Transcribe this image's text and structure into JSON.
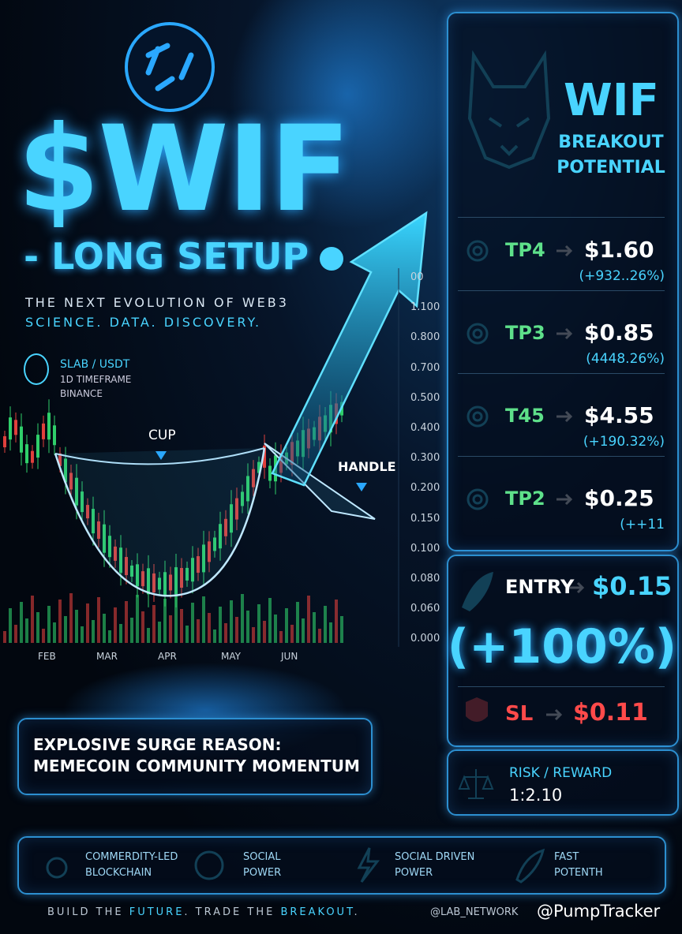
{
  "header": {
    "title": "$WIF",
    "subtitle": "- LONG SETUP",
    "tagline": "THE NEXT EVOLUTION OF WEB3",
    "tagline2": "SCIENCE. DATA. DISCOVERY."
  },
  "pair": {
    "symbol": "SLAB / USDT",
    "timeframe": "1D TIMEFRAME",
    "exchange": "BINANCE"
  },
  "chart": {
    "cup_label": "CUP",
    "handle_label": "HANDLE",
    "y_labels": [
      "00",
      "1.100",
      "0.800",
      "0.700",
      "0.500",
      "0.400",
      "0.300",
      "0.200",
      "0.150",
      "0.100",
      "0.080",
      "0.060",
      "0.000"
    ],
    "x_labels": [
      "FEB",
      "MAR",
      "APR",
      "MAY",
      "JUN"
    ]
  },
  "panel": {
    "title": "WIF",
    "subtitle": "BREAKOUT",
    "subtitle2": "POTENTIAL",
    "targets": [
      {
        "label": "TP4",
        "price": "$1.60",
        "change": "(+932..26%)"
      },
      {
        "label": "TP3",
        "price": "$0.85",
        "change": "(4448.26%)"
      },
      {
        "label": "T45",
        "price": "$4.55",
        "change": "(+190.32%)"
      },
      {
        "label": "TP2",
        "price": "$0.25",
        "change": "(++11"
      }
    ]
  },
  "entry": {
    "label": "ENTRY",
    "price": "$0.15",
    "change": "(+100%)"
  },
  "stop": {
    "label": "SL",
    "price": "$0.11"
  },
  "risk": {
    "label": "RISK / REWARD",
    "value": "1:2.10"
  },
  "reason": {
    "title": "EXPLOSIVE SURGE REASON:",
    "text": "MEMECOIN COMMUNITY MOMENTUM"
  },
  "features": [
    {
      "line1": "COMMERDITY-LED",
      "line2": "BLOCKCHAIN"
    },
    {
      "line1": "SOCIAL",
      "line2": "POWER"
    },
    {
      "line1": "SOCIAL DRIVEN",
      "line2": "POWER"
    },
    {
      "line1": "FAST",
      "line2": "POTENTH"
    }
  ],
  "footer": {
    "slogan": [
      "BUILD THE ",
      "FUTURE",
      ". TRADE THE ",
      "BREAKOUT",
      "."
    ],
    "handle": "@LAB_NETWORK",
    "watermark": "@PumpTracker"
  }
}
